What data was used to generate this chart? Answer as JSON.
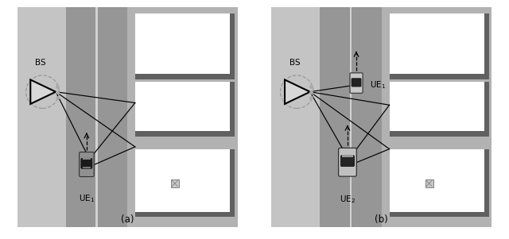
{
  "fig_width": 6.4,
  "fig_height": 3.01,
  "dpi": 100,
  "caption_a": "(a)",
  "caption_b": "(b)",
  "label_BS": "BS",
  "label_UE1_a": "UE$_1$",
  "label_UE1_b": "UE$_1$",
  "label_UE2_b": "UE$_2$",
  "col_bg": "#b0b0b0",
  "col_left_sidewalk": "#c2c2c2",
  "col_road": "#989898",
  "col_lane": "#d0d0d0",
  "col_right_bg": "#b0b0b0",
  "col_bld_shadow": "#606060",
  "col_bld_white": "#ffffff",
  "col_bld_inner_shadow": "#404040",
  "col_icon_fill": "#c8c8c8",
  "col_icon_edge": "#808080"
}
